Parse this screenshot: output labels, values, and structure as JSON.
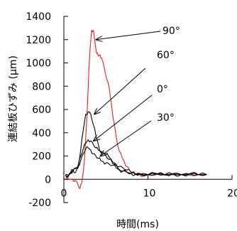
{
  "chart_data": {
    "type": "line",
    "title": "",
    "xlabel": "時間(ms)",
    "ylabel": "連結板ひずみ (μm)",
    "xlim": [
      0,
      20
    ],
    "ylim": [
      -200,
      1400
    ],
    "x_ticks": [
      0,
      10,
      20
    ],
    "x_tick_labels": [
      "0",
      "10",
      "20"
    ],
    "y_ticks": [
      -200,
      0,
      200,
      400,
      600,
      800,
      1000,
      1200,
      1400
    ],
    "y_tick_labels": [
      "-200",
      "0",
      "200",
      "400",
      "600",
      "800",
      "1000",
      "1200",
      "1400"
    ],
    "grid": false,
    "legend": "none",
    "series": [
      {
        "color": "#e8202a",
        "x": [
          0.2,
          0.6,
          1.0,
          1.4,
          1.7,
          1.9,
          2.1,
          2.3,
          2.5,
          2.7,
          2.9,
          3.1,
          3.3,
          3.5,
          3.7,
          3.9,
          4.1,
          4.3,
          4.5,
          4.8,
          5.1,
          5.4,
          5.7,
          6.0,
          6.3,
          6.6,
          6.9,
          7.2,
          7.5,
          7.8,
          8.1,
          8.5,
          9.0,
          9.5,
          10.0,
          11.0,
          12.0,
          13.0,
          14.0,
          15.0,
          16.0,
          17.0
        ],
        "y": [
          0,
          0,
          0,
          -10,
          -50,
          -80,
          -40,
          60,
          220,
          480,
          800,
          1100,
          1280,
          1280,
          1180,
          1080,
          1060,
          1070,
          1040,
          960,
          860,
          780,
          620,
          470,
          330,
          240,
          190,
          150,
          110,
          80,
          60,
          45,
          40,
          35,
          40,
          40,
          35,
          40,
          40,
          35,
          40,
          40
        ]
      },
      {
        "color": "#000000",
        "x": [
          0.2,
          0.5,
          0.8,
          1.1,
          1.4,
          1.7,
          2.0,
          2.3,
          2.6,
          2.9,
          3.2,
          3.5,
          3.8,
          4.1,
          4.4,
          4.7,
          5.0,
          5.3,
          5.6,
          6.0,
          6.5,
          7.0,
          7.5,
          8.0,
          8.5,
          9.0,
          10.0,
          11.0,
          12.0,
          13.0,
          14.0,
          15.0,
          16.0,
          17.0
        ],
        "y": [
          30,
          20,
          50,
          80,
          60,
          100,
          250,
          420,
          560,
          580,
          560,
          470,
          380,
          300,
          230,
          230,
          220,
          200,
          170,
          130,
          90,
          70,
          60,
          50,
          40,
          50,
          40,
          50,
          40,
          50,
          40,
          50,
          40,
          40
        ]
      },
      {
        "color": "#000000",
        "x": [
          0.2,
          0.5,
          0.8,
          1.1,
          1.4,
          1.7,
          2.0,
          2.3,
          2.6,
          2.9,
          3.2,
          3.5,
          3.8,
          4.1,
          4.4,
          4.7,
          5.0,
          5.4,
          5.8,
          6.2,
          6.6,
          7.0,
          7.5,
          8.0,
          8.5,
          9.0,
          10.0,
          11.0,
          12.0,
          13.0,
          14.0,
          15.0,
          16.0,
          17.0
        ],
        "y": [
          40,
          30,
          60,
          80,
          100,
          120,
          200,
          260,
          310,
          340,
          330,
          300,
          270,
          250,
          240,
          220,
          200,
          170,
          150,
          130,
          110,
          100,
          80,
          60,
          50,
          45,
          40,
          45,
          40,
          45,
          40,
          45,
          40,
          40
        ]
      },
      {
        "color": "#000000",
        "x": [
          0.2,
          0.5,
          0.8,
          1.1,
          1.4,
          1.7,
          2.0,
          2.3,
          2.6,
          2.9,
          3.2,
          3.5,
          3.8,
          4.1,
          4.4,
          4.7,
          5.0,
          5.4,
          5.8,
          6.2,
          6.6,
          7.0,
          7.5,
          8.0,
          8.5,
          9.0,
          10.0,
          11.0,
          12.0,
          13.0,
          14.0,
          15.0,
          16.0,
          17.0
        ],
        "y": [
          40,
          30,
          50,
          70,
          90,
          110,
          160,
          220,
          260,
          270,
          250,
          220,
          200,
          180,
          160,
          150,
          140,
          130,
          120,
          100,
          80,
          70,
          60,
          50,
          40,
          45,
          40,
          45,
          40,
          45,
          40,
          45,
          40,
          40
        ]
      }
    ],
    "annotations": [
      {
        "text": "90°",
        "point": [
          3.5,
          1200
        ]
      },
      {
        "text": "60°",
        "point": [
          3.3,
          560
        ]
      },
      {
        "text": "0°",
        "point": [
          3.2,
          330
        ]
      },
      {
        "text": "30°",
        "point": [
          4.0,
          200
        ]
      }
    ]
  }
}
